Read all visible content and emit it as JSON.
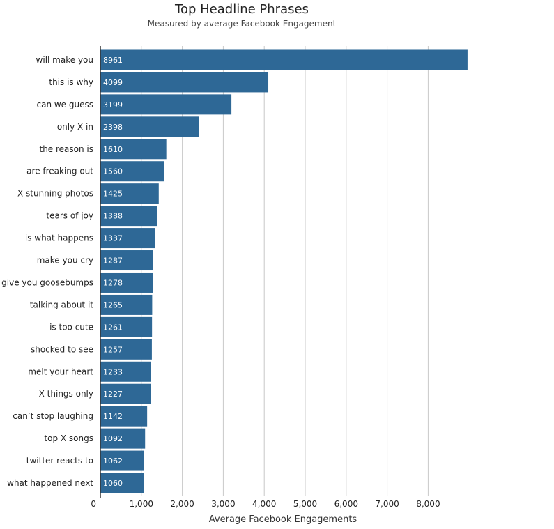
{
  "chart_data": {
    "type": "bar",
    "orientation": "horizontal",
    "title": "Top Headline Phrases",
    "subtitle": "Measured by average Facebook Engagement",
    "xlabel": "Average Facebook Engagements",
    "ylabel": "",
    "xlim": [
      0,
      9000
    ],
    "x_ticks": [
      0,
      1000,
      2000,
      3000,
      4000,
      5000,
      6000,
      7000,
      8000
    ],
    "x_tick_labels": [
      "0",
      "1,000",
      "2,000",
      "3,000",
      "4,000",
      "5,000",
      "6,000",
      "7,000",
      "8,000"
    ],
    "grid": true,
    "bar_color": "#2e6896",
    "categories": [
      "will make you",
      "this is why",
      "can we guess",
      "only X in",
      "the reason is",
      "are freaking out",
      "X stunning photos",
      "tears of joy",
      "is what happens",
      "make you cry",
      "give you goosebumps",
      "talking about it",
      "is too cute",
      "shocked to see",
      "melt your heart",
      "X things only",
      "can’t stop laughing",
      "top X songs",
      "twitter reacts to",
      "what happened next"
    ],
    "values": [
      8961,
      4099,
      3199,
      2398,
      1610,
      1560,
      1425,
      1388,
      1337,
      1287,
      1278,
      1265,
      1261,
      1257,
      1233,
      1227,
      1142,
      1092,
      1062,
      1060
    ]
  }
}
